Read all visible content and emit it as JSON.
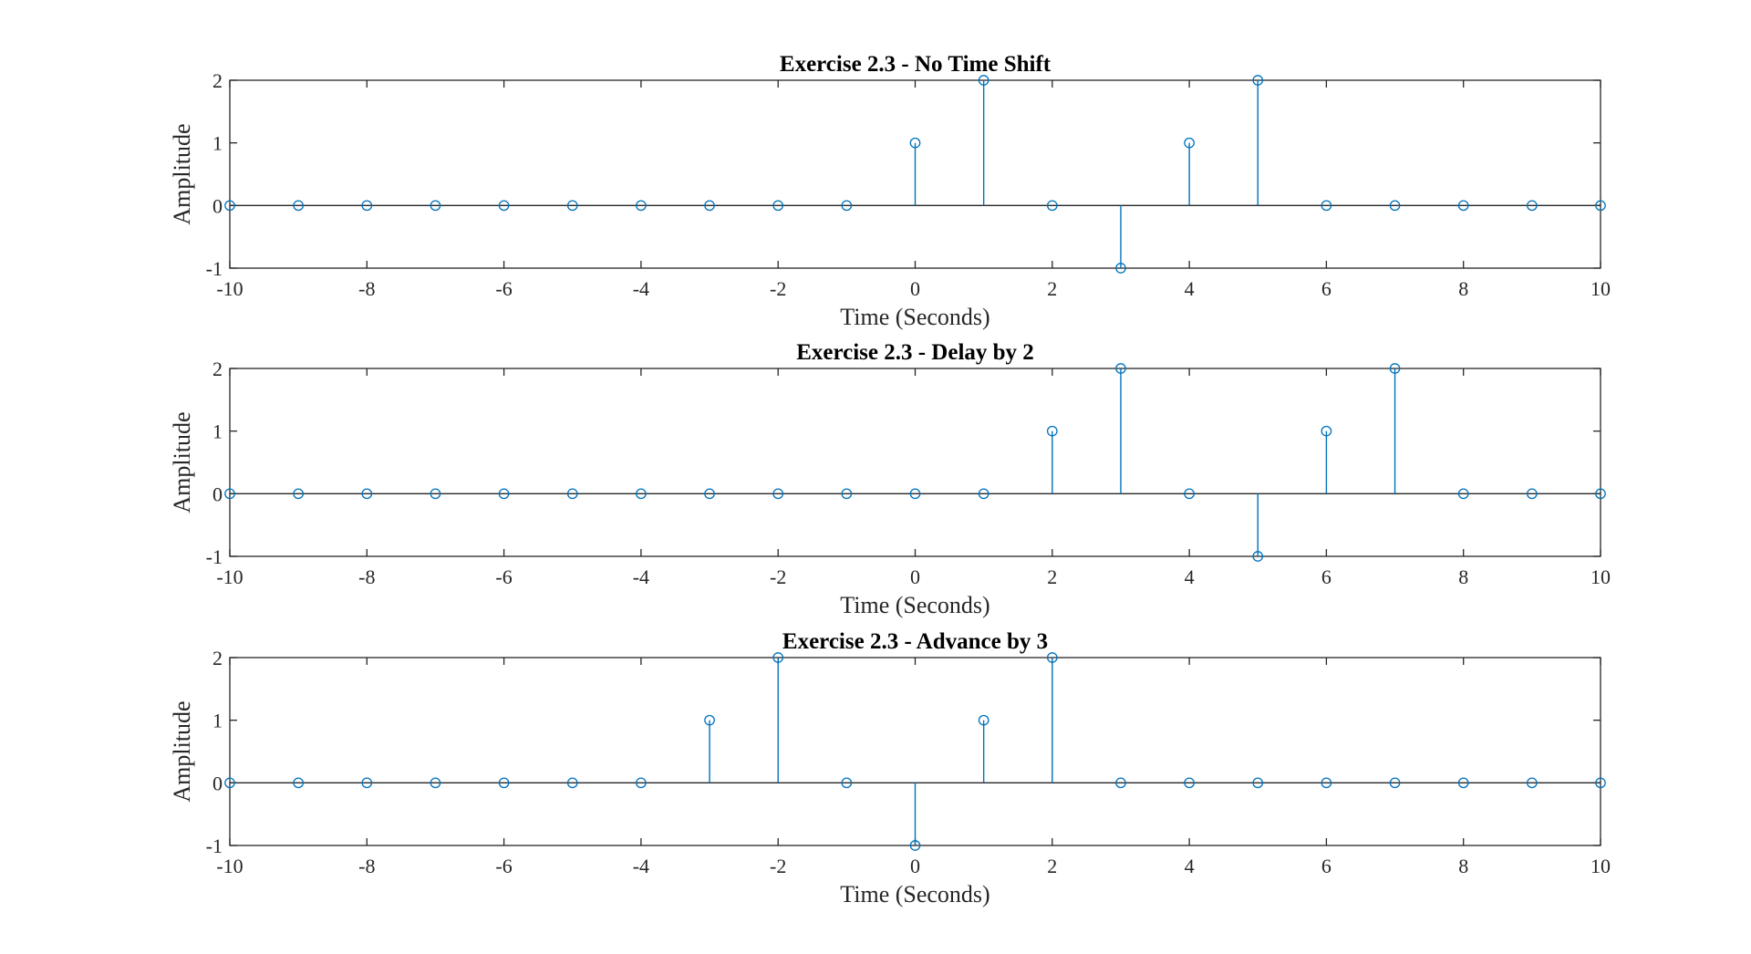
{
  "colors": {
    "stem": "#0072BD",
    "axes": "#262626",
    "background": "#ffffff"
  },
  "chart_data": [
    {
      "type": "stem",
      "title": "Exercise 2.3 - No Time Shift",
      "xlabel": "Time (Seconds)",
      "ylabel": "Amplitude",
      "xlim": [
        -10,
        10
      ],
      "ylim": [
        -1,
        2
      ],
      "xticks": [
        -10,
        -8,
        -6,
        -4,
        -2,
        0,
        2,
        4,
        6,
        8,
        10
      ],
      "yticks": [
        -1,
        0,
        1,
        2
      ],
      "grid": false,
      "x": [
        -10,
        -9,
        -8,
        -7,
        -6,
        -5,
        -4,
        -3,
        -2,
        -1,
        0,
        1,
        2,
        3,
        4,
        5,
        6,
        7,
        8,
        9,
        10
      ],
      "y": [
        0,
        0,
        0,
        0,
        0,
        0,
        0,
        0,
        0,
        0,
        1,
        2,
        0,
        -1,
        1,
        2,
        0,
        0,
        0,
        0,
        0
      ]
    },
    {
      "type": "stem",
      "title": "Exercise 2.3 - Delay by 2",
      "xlabel": "Time (Seconds)",
      "ylabel": "Amplitude",
      "xlim": [
        -10,
        10
      ],
      "ylim": [
        -1,
        2
      ],
      "xticks": [
        -10,
        -8,
        -6,
        -4,
        -2,
        0,
        2,
        4,
        6,
        8,
        10
      ],
      "yticks": [
        -1,
        0,
        1,
        2
      ],
      "grid": false,
      "x": [
        -10,
        -9,
        -8,
        -7,
        -6,
        -5,
        -4,
        -3,
        -2,
        -1,
        0,
        1,
        2,
        3,
        4,
        5,
        6,
        7,
        8,
        9,
        10
      ],
      "y": [
        0,
        0,
        0,
        0,
        0,
        0,
        0,
        0,
        0,
        0,
        0,
        0,
        1,
        2,
        0,
        -1,
        1,
        2,
        0,
        0,
        0
      ]
    },
    {
      "type": "stem",
      "title": "Exercise 2.3 - Advance by 3",
      "xlabel": "Time (Seconds)",
      "ylabel": "Amplitude",
      "xlim": [
        -10,
        10
      ],
      "ylim": [
        -1,
        2
      ],
      "xticks": [
        -10,
        -8,
        -6,
        -4,
        -2,
        0,
        2,
        4,
        6,
        8,
        10
      ],
      "yticks": [
        -1,
        0,
        1,
        2
      ],
      "grid": false,
      "x": [
        -10,
        -9,
        -8,
        -7,
        -6,
        -5,
        -4,
        -3,
        -2,
        -1,
        0,
        1,
        2,
        3,
        4,
        5,
        6,
        7,
        8,
        9,
        10
      ],
      "y": [
        0,
        0,
        0,
        0,
        0,
        0,
        0,
        1,
        2,
        0,
        -1,
        1,
        2,
        0,
        0,
        0,
        0,
        0,
        0,
        0,
        0
      ]
    }
  ]
}
